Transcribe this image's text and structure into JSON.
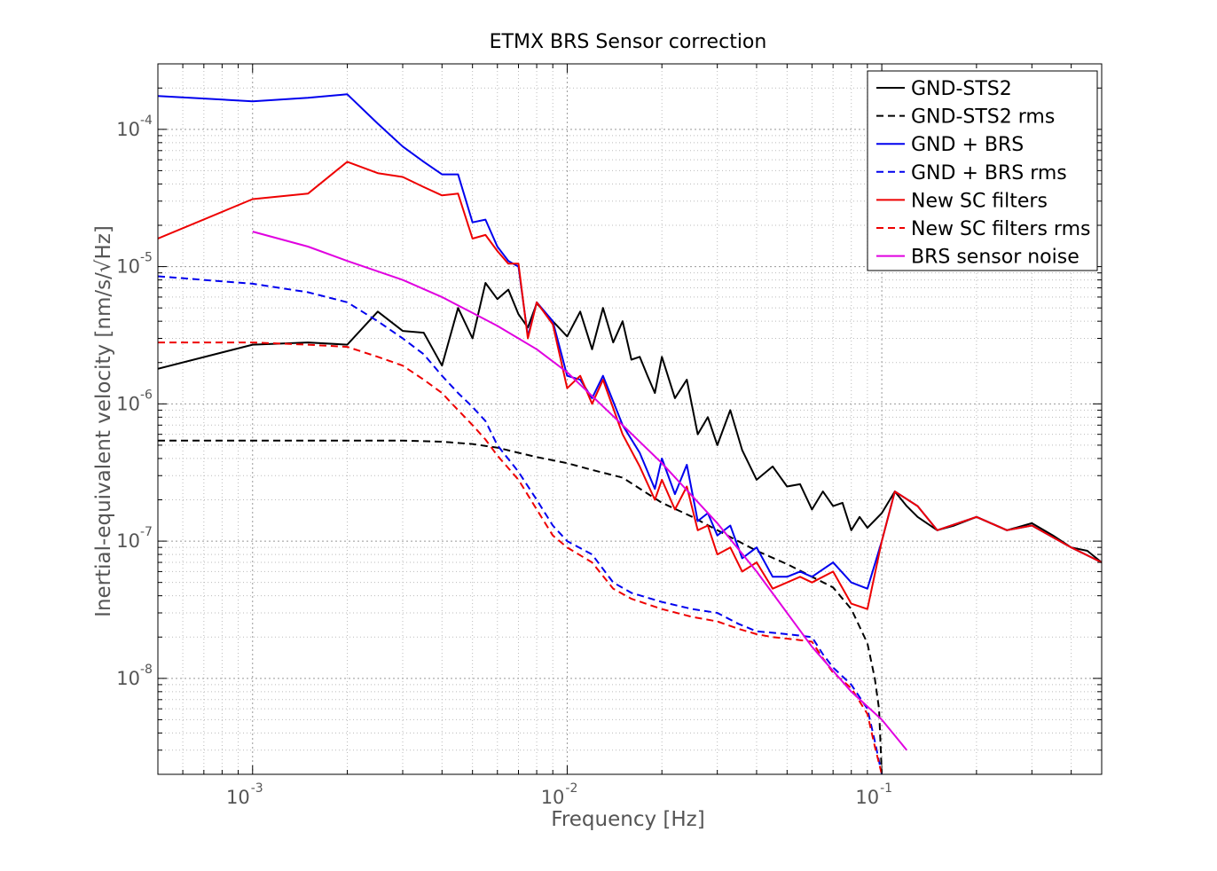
{
  "chart_data": {
    "type": "line",
    "title": "ETMX BRS Sensor correction",
    "xlabel": "Frequency [Hz]",
    "ylabel": "Inertial-equivalent velocity [nm/s/√Hz]",
    "xscale": "log",
    "yscale": "log",
    "xlim": [
      0.0005,
      0.5
    ],
    "ylim": [
      2e-09,
      0.0003
    ],
    "x_ticks": [
      {
        "value": 0.001,
        "base": "10",
        "exp": "-3"
      },
      {
        "value": 0.01,
        "base": "10",
        "exp": "-2"
      },
      {
        "value": 0.1,
        "base": "10",
        "exp": "-1"
      }
    ],
    "y_ticks": [
      {
        "value": 1e-08,
        "base": "10",
        "exp": "-8"
      },
      {
        "value": 1e-07,
        "base": "10",
        "exp": "-7"
      },
      {
        "value": 1e-06,
        "base": "10",
        "exp": "-6"
      },
      {
        "value": 1e-05,
        "base": "10",
        "exp": "-5"
      },
      {
        "value": 0.0001,
        "base": "10",
        "exp": "-4"
      }
    ],
    "grid": true,
    "legend_position": "top-right",
    "series": [
      {
        "name": "GND-STS2",
        "color": "#000000",
        "dash": "solid",
        "x": [
          0.0005,
          0.001,
          0.0015,
          0.002,
          0.0025,
          0.003,
          0.0035,
          0.004,
          0.0045,
          0.005,
          0.0055,
          0.006,
          0.0065,
          0.007,
          0.0075,
          0.008,
          0.009,
          0.01,
          0.011,
          0.012,
          0.013,
          0.014,
          0.015,
          0.016,
          0.017,
          0.018,
          0.019,
          0.02,
          0.022,
          0.024,
          0.026,
          0.028,
          0.03,
          0.033,
          0.036,
          0.04,
          0.045,
          0.05,
          0.055,
          0.06,
          0.065,
          0.07,
          0.075,
          0.08,
          0.085,
          0.09,
          0.1,
          0.11,
          0.12,
          0.13,
          0.15,
          0.17,
          0.2,
          0.25,
          0.3,
          0.35,
          0.4,
          0.45,
          0.5
        ],
        "y": [
          1.8e-06,
          2.7e-06,
          2.8e-06,
          2.7e-06,
          4.7e-06,
          3.4e-06,
          3.3e-06,
          1.9e-06,
          5e-06,
          3e-06,
          7.6e-06,
          5.8e-06,
          6.8e-06,
          4.5e-06,
          3.6e-06,
          5.4e-06,
          4e-06,
          3.1e-06,
          4.7e-06,
          2.5e-06,
          5e-06,
          2.8e-06,
          4e-06,
          2.1e-06,
          2.2e-06,
          1.6e-06,
          1.2e-06,
          2.2e-06,
          1.1e-06,
          1.5e-06,
          6e-07,
          8e-07,
          5e-07,
          9e-07,
          4.6e-07,
          2.8e-07,
          3.5e-07,
          2.5e-07,
          2.6e-07,
          1.7e-07,
          2.3e-07,
          1.8e-07,
          1.9e-07,
          1.2e-07,
          1.5e-07,
          1.25e-07,
          1.6e-07,
          2.3e-07,
          1.8e-07,
          1.5e-07,
          1.2e-07,
          1.3e-07,
          1.5e-07,
          1.2e-07,
          1.35e-07,
          1.1e-07,
          9e-08,
          8.5e-08,
          7e-08
        ]
      },
      {
        "name": "GND-STS2 rms",
        "color": "#000000",
        "dash": "dashed",
        "x": [
          0.0005,
          0.001,
          0.002,
          0.003,
          0.004,
          0.005,
          0.006,
          0.007,
          0.008,
          0.01,
          0.012,
          0.015,
          0.02,
          0.025,
          0.03,
          0.04,
          0.05,
          0.06,
          0.07,
          0.08,
          0.09,
          0.095,
          0.098,
          0.1
        ],
        "y": [
          5.4e-07,
          5.4e-07,
          5.4e-07,
          5.4e-07,
          5.3e-07,
          5.1e-07,
          4.8e-07,
          4.4e-07,
          4.1e-07,
          3.7e-07,
          3.3e-07,
          2.9e-07,
          1.9e-07,
          1.5e-07,
          1.2e-07,
          8.5e-08,
          6.8e-08,
          5.5e-08,
          4.6e-08,
          3.2e-08,
          1.8e-08,
          1e-08,
          6e-09,
          2e-09
        ]
      },
      {
        "name": "GND + BRS",
        "color": "#0000ee",
        "dash": "solid",
        "x": [
          0.0005,
          0.001,
          0.0015,
          0.002,
          0.0025,
          0.003,
          0.0035,
          0.004,
          0.0045,
          0.005,
          0.0055,
          0.006,
          0.0065,
          0.007,
          0.0075,
          0.008,
          0.009,
          0.01,
          0.011,
          0.012,
          0.013,
          0.015,
          0.017,
          0.019,
          0.02,
          0.022,
          0.024,
          0.026,
          0.028,
          0.03,
          0.033,
          0.036,
          0.04,
          0.045,
          0.05,
          0.055,
          0.06,
          0.07,
          0.08,
          0.09,
          0.1,
          0.11,
          0.13,
          0.15,
          0.2,
          0.25,
          0.3,
          0.4,
          0.5
        ],
        "y": [
          0.000175,
          0.00016,
          0.00017,
          0.00018,
          0.00011,
          7.5e-05,
          5.8e-05,
          4.7e-05,
          4.7e-05,
          2.1e-05,
          2.2e-05,
          1.4e-05,
          1.1e-05,
          1e-05,
          3.1e-06,
          5.5e-06,
          4e-06,
          1.6e-06,
          1.5e-06,
          1.1e-06,
          1.6e-06,
          7e-07,
          4.4e-07,
          2.4e-07,
          4e-07,
          2.2e-07,
          3.6e-07,
          1.4e-07,
          1.6e-07,
          1.1e-07,
          1.3e-07,
          7.5e-08,
          9e-08,
          5.5e-08,
          5.5e-08,
          6e-08,
          5.5e-08,
          7e-08,
          5e-08,
          4.5e-08,
          1e-07,
          2.3e-07,
          1.8e-07,
          1.2e-07,
          1.5e-07,
          1.2e-07,
          1.3e-07,
          9e-08,
          7e-08
        ]
      },
      {
        "name": "GND + BRS rms",
        "color": "#0000ee",
        "dash": "dashed",
        "x": [
          0.0005,
          0.001,
          0.0015,
          0.002,
          0.0025,
          0.003,
          0.0035,
          0.004,
          0.0045,
          0.005,
          0.0055,
          0.006,
          0.007,
          0.008,
          0.009,
          0.01,
          0.012,
          0.014,
          0.016,
          0.02,
          0.025,
          0.03,
          0.035,
          0.04,
          0.045,
          0.05,
          0.055,
          0.06,
          0.065,
          0.07,
          0.08,
          0.09,
          0.095,
          0.1
        ],
        "y": [
          8.5e-06,
          7.5e-06,
          6.5e-06,
          5.5e-06,
          4e-06,
          3e-06,
          2.3e-06,
          1.6e-06,
          1.2e-06,
          9.5e-07,
          7.5e-07,
          5e-07,
          3.2e-07,
          2e-07,
          1.3e-07,
          1e-07,
          8e-08,
          5e-08,
          4.2e-08,
          3.6e-08,
          3.2e-08,
          3e-08,
          2.5e-08,
          2.2e-08,
          2.15e-08,
          2.1e-08,
          2.05e-08,
          2e-08,
          1.5e-08,
          1.2e-08,
          9e-09,
          6e-09,
          3.5e-09,
          2e-09
        ]
      },
      {
        "name": "New SC filters",
        "color": "#ee0000",
        "dash": "solid",
        "x": [
          0.0005,
          0.001,
          0.0015,
          0.002,
          0.0025,
          0.003,
          0.0035,
          0.004,
          0.0045,
          0.005,
          0.0055,
          0.006,
          0.0065,
          0.007,
          0.0075,
          0.008,
          0.009,
          0.01,
          0.011,
          0.012,
          0.013,
          0.015,
          0.017,
          0.019,
          0.02,
          0.022,
          0.024,
          0.026,
          0.028,
          0.03,
          0.033,
          0.036,
          0.04,
          0.045,
          0.05,
          0.055,
          0.06,
          0.07,
          0.08,
          0.09,
          0.1,
          0.11,
          0.13,
          0.15,
          0.2,
          0.25,
          0.3,
          0.4,
          0.5
        ],
        "y": [
          1.6e-05,
          3.1e-05,
          3.4e-05,
          5.8e-05,
          4.8e-05,
          4.5e-05,
          3.8e-05,
          3.3e-05,
          3.4e-05,
          1.6e-05,
          1.7e-05,
          1.3e-05,
          1.05e-05,
          1.05e-05,
          3e-06,
          5.5e-06,
          3.8e-06,
          1.3e-06,
          1.6e-06,
          1e-06,
          1.5e-06,
          6e-07,
          3.5e-07,
          2e-07,
          2.8e-07,
          1.7e-07,
          2.5e-07,
          1.2e-07,
          1.3e-07,
          8e-08,
          9e-08,
          6e-08,
          7e-08,
          4.5e-08,
          5e-08,
          5.5e-08,
          5e-08,
          6e-08,
          3.5e-08,
          3.2e-08,
          1e-07,
          2.3e-07,
          1.8e-07,
          1.2e-07,
          1.5e-07,
          1.2e-07,
          1.3e-07,
          9e-08,
          7e-08
        ]
      },
      {
        "name": "New SC filters rms",
        "color": "#ee0000",
        "dash": "dashed",
        "x": [
          0.0005,
          0.001,
          0.0015,
          0.002,
          0.0025,
          0.003,
          0.0035,
          0.004,
          0.0045,
          0.005,
          0.0055,
          0.006,
          0.007,
          0.008,
          0.009,
          0.01,
          0.012,
          0.014,
          0.016,
          0.02,
          0.025,
          0.03,
          0.035,
          0.04,
          0.045,
          0.05,
          0.055,
          0.06,
          0.065,
          0.07,
          0.08,
          0.09,
          0.095,
          0.1
        ],
        "y": [
          2.8e-06,
          2.8e-06,
          2.7e-06,
          2.6e-06,
          2.2e-06,
          1.9e-06,
          1.5e-06,
          1.2e-06,
          9e-07,
          7e-07,
          5.5e-07,
          4.2e-07,
          2.8e-07,
          1.7e-07,
          1.1e-07,
          9e-08,
          7e-08,
          4.5e-08,
          3.8e-08,
          3.2e-08,
          2.8e-08,
          2.6e-08,
          2.3e-08,
          2.1e-08,
          2e-08,
          1.95e-08,
          1.9e-08,
          1.85e-08,
          1.4e-08,
          1.1e-08,
          8.5e-09,
          5.5e-09,
          3.2e-09,
          2e-09
        ]
      },
      {
        "name": "BRS sensor noise",
        "color": "#e000e0",
        "dash": "solid",
        "x": [
          0.001,
          0.0015,
          0.002,
          0.003,
          0.004,
          0.005,
          0.006,
          0.008,
          0.01,
          0.015,
          0.02,
          0.03,
          0.04,
          0.05,
          0.06,
          0.08,
          0.1,
          0.12
        ],
        "y": [
          1.8e-05,
          1.4e-05,
          1.1e-05,
          8e-06,
          6e-06,
          4.6e-06,
          3.7e-06,
          2.5e-06,
          1.7e-06,
          7e-07,
          3.7e-07,
          1.35e-07,
          6e-08,
          3e-08,
          1.7e-08,
          8e-09,
          5e-09,
          3e-09
        ]
      }
    ]
  }
}
